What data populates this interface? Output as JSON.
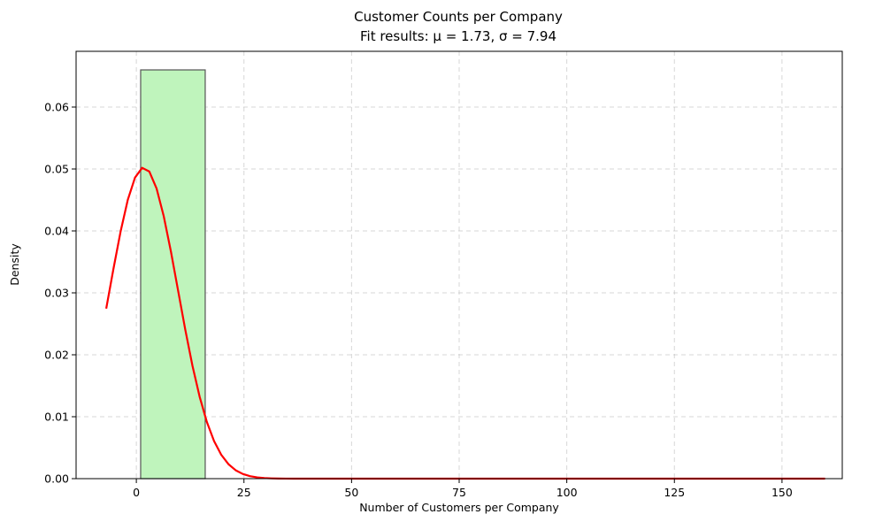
{
  "chart_data": {
    "type": "bar",
    "title": "Customer Counts per Company",
    "subtitle": "Fit results: μ = 1.73, σ = 7.94",
    "xlabel": "Number of Customers per Company",
    "ylabel": "Density",
    "xlim": [
      -14,
      164
    ],
    "ylim": [
      0,
      0.069
    ],
    "xticks": [
      0,
      25,
      50,
      75,
      100,
      125,
      150
    ],
    "yticks": [
      0.0,
      0.01,
      0.02,
      0.03,
      0.04,
      0.05,
      0.06
    ],
    "ytick_format_decimals": 2,
    "grid": true,
    "histogram": {
      "bins": [
        {
          "x0": 1,
          "x1": 16,
          "density": 0.066
        }
      ],
      "fill_color": "#bff4bc",
      "edge_color": "#555555"
    },
    "fit_curve": {
      "name": "normal fit",
      "mu": 1.73,
      "sigma": 7.94,
      "x_range": [
        -7,
        160
      ],
      "color": "#ff0000"
    }
  }
}
